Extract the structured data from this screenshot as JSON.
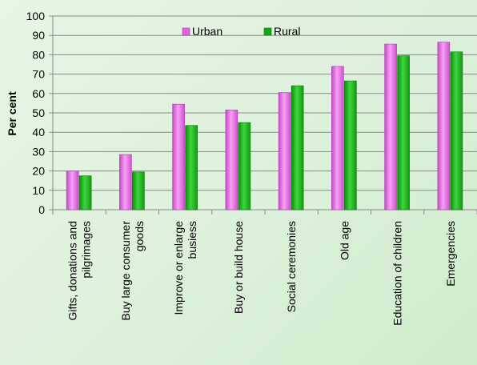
{
  "chart_data": {
    "type": "bar",
    "title": "",
    "xlabel": "",
    "ylabel": "Per cent",
    "ylim": [
      0,
      100
    ],
    "yticks": [
      0,
      10,
      20,
      30,
      40,
      50,
      60,
      70,
      80,
      90,
      100
    ],
    "grid": true,
    "legend_position": "top",
    "categories": [
      [
        "Gifts, donations and",
        "pilgrimages"
      ],
      [
        "Buy large consumer",
        "goods"
      ],
      [
        "Improve or enlarge",
        "busiess"
      ],
      [
        "Buy or build house"
      ],
      [
        "Social ceremonies"
      ],
      [
        "Old age"
      ],
      [
        "Education of children"
      ],
      [
        "Emergencies"
      ]
    ],
    "series": [
      {
        "name": "Urban",
        "color": "#e15fe0",
        "values": [
          20,
          28.5,
          54.5,
          51.5,
          60.5,
          74,
          85.5,
          86.5
        ]
      },
      {
        "name": "Rural",
        "color": "#13a813",
        "values": [
          17.5,
          19.5,
          43.5,
          45,
          64,
          66.5,
          79.5,
          81.5
        ]
      }
    ]
  }
}
